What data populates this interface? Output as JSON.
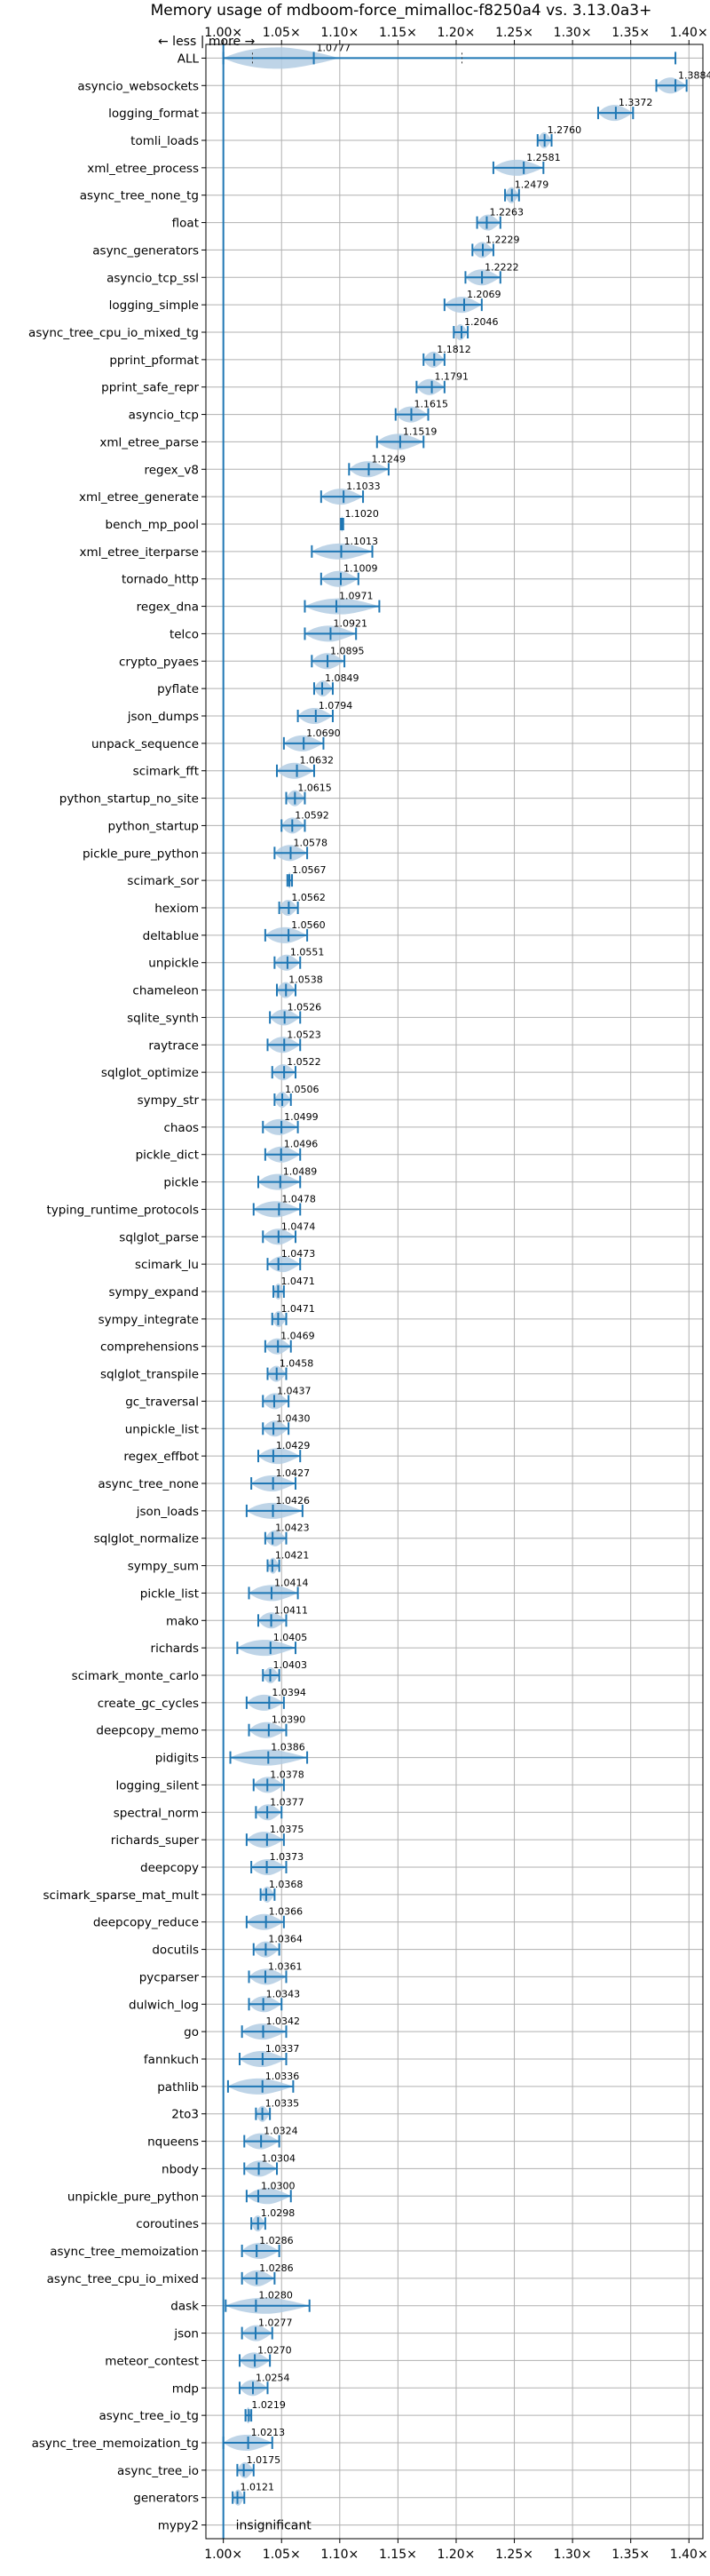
{
  "chart_data": {
    "type": "violin",
    "title": "Memory usage of mdboom-force_mimalloc-f8250a4 vs. 3.13.0a3+",
    "direction_note": "← less | more →",
    "xlabel": "",
    "ylabel": "",
    "xlim": [
      0.985,
      1.412
    ],
    "x_ticks": [
      1.0,
      1.05,
      1.1,
      1.15,
      1.2,
      1.25,
      1.3,
      1.35,
      1.4
    ],
    "x_tick_labels": [
      "1.00×",
      "1.05×",
      "1.10×",
      "1.15×",
      "1.20×",
      "1.25×",
      "1.30×",
      "1.35×",
      "1.40×"
    ],
    "reference_line": 1.0,
    "grid": true,
    "color": "#1f77b4",
    "violin_color": "#b3cde3",
    "benchmarks": [
      {
        "name": "ALL",
        "value": 1.0777,
        "label": "1.0777",
        "min": 1.0,
        "max": 1.3884
      },
      {
        "name": "asyncio_websockets",
        "value": 1.3884,
        "label": "1.3884",
        "min": 1.372,
        "max": 1.398
      },
      {
        "name": "logging_format",
        "value": 1.3372,
        "label": "1.3372",
        "min": 1.322,
        "max": 1.352
      },
      {
        "name": "tomli_loads",
        "value": 1.276,
        "label": "1.2760",
        "min": 1.27,
        "max": 1.282
      },
      {
        "name": "xml_etree_process",
        "value": 1.2581,
        "label": "1.2581",
        "min": 1.232,
        "max": 1.275
      },
      {
        "name": "async_tree_none_tg",
        "value": 1.2479,
        "label": "1.2479",
        "min": 1.242,
        "max": 1.254
      },
      {
        "name": "float",
        "value": 1.2263,
        "label": "1.2263",
        "min": 1.218,
        "max": 1.238
      },
      {
        "name": "async_generators",
        "value": 1.2229,
        "label": "1.2229",
        "min": 1.214,
        "max": 1.232
      },
      {
        "name": "asyncio_tcp_ssl",
        "value": 1.2222,
        "label": "1.2222",
        "min": 1.208,
        "max": 1.238
      },
      {
        "name": "logging_simple",
        "value": 1.2069,
        "label": "1.2069",
        "min": 1.19,
        "max": 1.222
      },
      {
        "name": "async_tree_cpu_io_mixed_tg",
        "value": 1.2046,
        "label": "1.2046",
        "min": 1.198,
        "max": 1.21
      },
      {
        "name": "pprint_pformat",
        "value": 1.1812,
        "label": "1.1812",
        "min": 1.172,
        "max": 1.19
      },
      {
        "name": "pprint_safe_repr",
        "value": 1.1791,
        "label": "1.1791",
        "min": 1.166,
        "max": 1.19
      },
      {
        "name": "asyncio_tcp",
        "value": 1.1615,
        "label": "1.1615",
        "min": 1.148,
        "max": 1.176
      },
      {
        "name": "xml_etree_parse",
        "value": 1.1519,
        "label": "1.1519",
        "min": 1.132,
        "max": 1.172
      },
      {
        "name": "regex_v8",
        "value": 1.1249,
        "label": "1.1249",
        "min": 1.108,
        "max": 1.142
      },
      {
        "name": "xml_etree_generate",
        "value": 1.1033,
        "label": "1.1033",
        "min": 1.084,
        "max": 1.12
      },
      {
        "name": "bench_mp_pool",
        "value": 1.102,
        "label": "1.1020",
        "min": 1.101,
        "max": 1.103
      },
      {
        "name": "xml_etree_iterparse",
        "value": 1.1013,
        "label": "1.1013",
        "min": 1.076,
        "max": 1.128
      },
      {
        "name": "tornado_http",
        "value": 1.1009,
        "label": "1.1009",
        "min": 1.084,
        "max": 1.116
      },
      {
        "name": "regex_dna",
        "value": 1.0971,
        "label": "1.0971",
        "min": 1.07,
        "max": 1.134
      },
      {
        "name": "telco",
        "value": 1.0921,
        "label": "1.0921",
        "min": 1.07,
        "max": 1.114
      },
      {
        "name": "crypto_pyaes",
        "value": 1.0895,
        "label": "1.0895",
        "min": 1.076,
        "max": 1.104
      },
      {
        "name": "pyflate",
        "value": 1.0849,
        "label": "1.0849",
        "min": 1.078,
        "max": 1.094
      },
      {
        "name": "json_dumps",
        "value": 1.0794,
        "label": "1.0794",
        "min": 1.064,
        "max": 1.094
      },
      {
        "name": "unpack_sequence",
        "value": 1.069,
        "label": "1.0690",
        "min": 1.052,
        "max": 1.086
      },
      {
        "name": "scimark_fft",
        "value": 1.0632,
        "label": "1.0632",
        "min": 1.046,
        "max": 1.078
      },
      {
        "name": "python_startup_no_site",
        "value": 1.0615,
        "label": "1.0615",
        "min": 1.054,
        "max": 1.07
      },
      {
        "name": "python_startup",
        "value": 1.0592,
        "label": "1.0592",
        "min": 1.05,
        "max": 1.07
      },
      {
        "name": "pickle_pure_python",
        "value": 1.0578,
        "label": "1.0578",
        "min": 1.044,
        "max": 1.072
      },
      {
        "name": "scimark_sor",
        "value": 1.0567,
        "label": "1.0567",
        "min": 1.055,
        "max": 1.059
      },
      {
        "name": "hexiom",
        "value": 1.0562,
        "label": "1.0562",
        "min": 1.048,
        "max": 1.064
      },
      {
        "name": "deltablue",
        "value": 1.056,
        "label": "1.0560",
        "min": 1.036,
        "max": 1.072
      },
      {
        "name": "unpickle",
        "value": 1.0551,
        "label": "1.0551",
        "min": 1.044,
        "max": 1.066
      },
      {
        "name": "chameleon",
        "value": 1.0538,
        "label": "1.0538",
        "min": 1.046,
        "max": 1.062
      },
      {
        "name": "sqlite_synth",
        "value": 1.0526,
        "label": "1.0526",
        "min": 1.04,
        "max": 1.066
      },
      {
        "name": "raytrace",
        "value": 1.0523,
        "label": "1.0523",
        "min": 1.038,
        "max": 1.066
      },
      {
        "name": "sqlglot_optimize",
        "value": 1.0522,
        "label": "1.0522",
        "min": 1.042,
        "max": 1.062
      },
      {
        "name": "sympy_str",
        "value": 1.0506,
        "label": "1.0506",
        "min": 1.044,
        "max": 1.058
      },
      {
        "name": "chaos",
        "value": 1.0499,
        "label": "1.0499",
        "min": 1.034,
        "max": 1.064
      },
      {
        "name": "pickle_dict",
        "value": 1.0496,
        "label": "1.0496",
        "min": 1.036,
        "max": 1.066
      },
      {
        "name": "pickle",
        "value": 1.0489,
        "label": "1.0489",
        "min": 1.03,
        "max": 1.066
      },
      {
        "name": "typing_runtime_protocols",
        "value": 1.0478,
        "label": "1.0478",
        "min": 1.026,
        "max": 1.066
      },
      {
        "name": "sqlglot_parse",
        "value": 1.0474,
        "label": "1.0474",
        "min": 1.034,
        "max": 1.062
      },
      {
        "name": "scimark_lu",
        "value": 1.0473,
        "label": "1.0473",
        "min": 1.038,
        "max": 1.066
      },
      {
        "name": "sympy_expand",
        "value": 1.0471,
        "label": "1.0471",
        "min": 1.043,
        "max": 1.052
      },
      {
        "name": "sympy_integrate",
        "value": 1.0471,
        "label": "1.0471",
        "min": 1.042,
        "max": 1.054
      },
      {
        "name": "comprehensions",
        "value": 1.0469,
        "label": "1.0469",
        "min": 1.036,
        "max": 1.058
      },
      {
        "name": "sqlglot_transpile",
        "value": 1.0458,
        "label": "1.0458",
        "min": 1.038,
        "max": 1.054
      },
      {
        "name": "gc_traversal",
        "value": 1.0437,
        "label": "1.0437",
        "min": 1.034,
        "max": 1.056
      },
      {
        "name": "unpickle_list",
        "value": 1.043,
        "label": "1.0430",
        "min": 1.034,
        "max": 1.056
      },
      {
        "name": "regex_effbot",
        "value": 1.0429,
        "label": "1.0429",
        "min": 1.03,
        "max": 1.066
      },
      {
        "name": "async_tree_none",
        "value": 1.0427,
        "label": "1.0427",
        "min": 1.024,
        "max": 1.062
      },
      {
        "name": "json_loads",
        "value": 1.0426,
        "label": "1.0426",
        "min": 1.02,
        "max": 1.068
      },
      {
        "name": "sqlglot_normalize",
        "value": 1.0423,
        "label": "1.0423",
        "min": 1.036,
        "max": 1.054
      },
      {
        "name": "sympy_sum",
        "value": 1.0421,
        "label": "1.0421",
        "min": 1.038,
        "max": 1.048
      },
      {
        "name": "pickle_list",
        "value": 1.0414,
        "label": "1.0414",
        "min": 1.022,
        "max": 1.064
      },
      {
        "name": "mako",
        "value": 1.0411,
        "label": "1.0411",
        "min": 1.03,
        "max": 1.054
      },
      {
        "name": "richards",
        "value": 1.0405,
        "label": "1.0405",
        "min": 1.012,
        "max": 1.062
      },
      {
        "name": "scimark_monte_carlo",
        "value": 1.0403,
        "label": "1.0403",
        "min": 1.034,
        "max": 1.048
      },
      {
        "name": "create_gc_cycles",
        "value": 1.0394,
        "label": "1.0394",
        "min": 1.02,
        "max": 1.052
      },
      {
        "name": "deepcopy_memo",
        "value": 1.039,
        "label": "1.0390",
        "min": 1.022,
        "max": 1.054
      },
      {
        "name": "pidigits",
        "value": 1.0386,
        "label": "1.0386",
        "min": 1.006,
        "max": 1.072
      },
      {
        "name": "logging_silent",
        "value": 1.0378,
        "label": "1.0378",
        "min": 1.026,
        "max": 1.052
      },
      {
        "name": "spectral_norm",
        "value": 1.0377,
        "label": "1.0377",
        "min": 1.028,
        "max": 1.05
      },
      {
        "name": "richards_super",
        "value": 1.0375,
        "label": "1.0375",
        "min": 1.02,
        "max": 1.052
      },
      {
        "name": "deepcopy",
        "value": 1.0373,
        "label": "1.0373",
        "min": 1.024,
        "max": 1.054
      },
      {
        "name": "scimark_sparse_mat_mult",
        "value": 1.0368,
        "label": "1.0368",
        "min": 1.032,
        "max": 1.044
      },
      {
        "name": "deepcopy_reduce",
        "value": 1.0366,
        "label": "1.0366",
        "min": 1.02,
        "max": 1.052
      },
      {
        "name": "docutils",
        "value": 1.0364,
        "label": "1.0364",
        "min": 1.026,
        "max": 1.048
      },
      {
        "name": "pycparser",
        "value": 1.0361,
        "label": "1.0361",
        "min": 1.022,
        "max": 1.054
      },
      {
        "name": "dulwich_log",
        "value": 1.0343,
        "label": "1.0343",
        "min": 1.022,
        "max": 1.05
      },
      {
        "name": "go",
        "value": 1.0342,
        "label": "1.0342",
        "min": 1.016,
        "max": 1.054
      },
      {
        "name": "fannkuch",
        "value": 1.0337,
        "label": "1.0337",
        "min": 1.014,
        "max": 1.054
      },
      {
        "name": "pathlib",
        "value": 1.0336,
        "label": "1.0336",
        "min": 1.004,
        "max": 1.06
      },
      {
        "name": "2to3",
        "value": 1.0335,
        "label": "1.0335",
        "min": 1.028,
        "max": 1.04
      },
      {
        "name": "nqueens",
        "value": 1.0324,
        "label": "1.0324",
        "min": 1.018,
        "max": 1.048
      },
      {
        "name": "nbody",
        "value": 1.0304,
        "label": "1.0304",
        "min": 1.018,
        "max": 1.046
      },
      {
        "name": "unpickle_pure_python",
        "value": 1.03,
        "label": "1.0300",
        "min": 1.02,
        "max": 1.058
      },
      {
        "name": "coroutines",
        "value": 1.0298,
        "label": "1.0298",
        "min": 1.024,
        "max": 1.036
      },
      {
        "name": "async_tree_memoization",
        "value": 1.0286,
        "label": "1.0286",
        "min": 1.016,
        "max": 1.048
      },
      {
        "name": "async_tree_cpu_io_mixed",
        "value": 1.0286,
        "label": "1.0286",
        "min": 1.016,
        "max": 1.044
      },
      {
        "name": "dask",
        "value": 1.028,
        "label": "1.0280",
        "min": 1.002,
        "max": 1.074
      },
      {
        "name": "json",
        "value": 1.0277,
        "label": "1.0277",
        "min": 1.016,
        "max": 1.042
      },
      {
        "name": "meteor_contest",
        "value": 1.027,
        "label": "1.0270",
        "min": 1.014,
        "max": 1.04
      },
      {
        "name": "mdp",
        "value": 1.0254,
        "label": "1.0254",
        "min": 1.014,
        "max": 1.038
      },
      {
        "name": "async_tree_io_tg",
        "value": 1.0219,
        "label": "1.0219",
        "min": 1.019,
        "max": 1.024
      },
      {
        "name": "async_tree_memoization_tg",
        "value": 1.0213,
        "label": "1.0213",
        "min": 1.0,
        "max": 1.042
      },
      {
        "name": "async_tree_io",
        "value": 1.0175,
        "label": "1.0175",
        "min": 1.012,
        "max": 1.026
      },
      {
        "name": "generators",
        "value": 1.0121,
        "label": "1.0121",
        "min": 1.008,
        "max": 1.018
      },
      {
        "name": "mypy2",
        "value": null,
        "label": "insignificant",
        "min": null,
        "max": null
      }
    ]
  }
}
